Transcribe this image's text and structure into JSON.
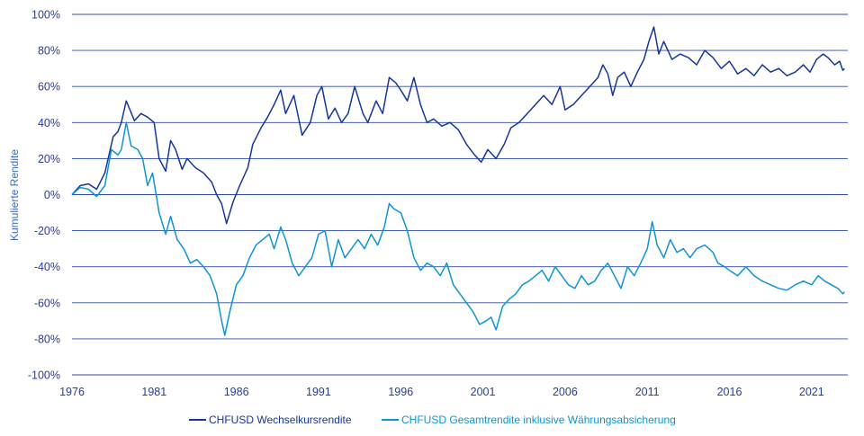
{
  "chart_data": {
    "type": "line",
    "title": "",
    "xlabel": "",
    "ylabel": "Kumulierte Rendite",
    "xlim": [
      1976,
      2023.2
    ],
    "ylim": [
      -100,
      100
    ],
    "x_ticks": [
      "1976",
      "1981",
      "1986",
      "1991",
      "1996",
      "2001",
      "2006",
      "2011",
      "2016",
      "2021"
    ],
    "y_ticks": [
      "100%",
      "80%",
      "60%",
      "40%",
      "20%",
      "0%",
      "-20%",
      "-40%",
      "-60%",
      "-80%",
      "-100%"
    ],
    "grid": "horizontal",
    "legend_position": "bottom",
    "series": [
      {
        "name": "CHFUSD Wechselkursrendite",
        "color": "#15369a",
        "x": [
          1976.0,
          1976.5,
          1977.0,
          1977.5,
          1978.0,
          1978.5,
          1978.8,
          1979.0,
          1979.3,
          1979.8,
          1980.2,
          1980.6,
          1981.0,
          1981.3,
          1981.7,
          1982.0,
          1982.3,
          1982.7,
          1983.0,
          1983.5,
          1984.0,
          1984.5,
          1984.8,
          1985.1,
          1985.4,
          1985.8,
          1986.2,
          1986.7,
          1987.0,
          1987.5,
          1987.9,
          1988.3,
          1988.7,
          1989.0,
          1989.5,
          1990.0,
          1990.5,
          1990.9,
          1991.2,
          1991.6,
          1992.0,
          1992.4,
          1992.8,
          1993.2,
          1993.7,
          1994.0,
          1994.5,
          1994.9,
          1995.3,
          1995.7,
          1996.0,
          1996.4,
          1996.8,
          1997.2,
          1997.6,
          1998.0,
          1998.5,
          1999.0,
          1999.5,
          2000.0,
          2000.5,
          2000.9,
          2001.3,
          2001.8,
          2002.3,
          2002.7,
          2003.2,
          2003.7,
          2004.2,
          2004.7,
          2005.2,
          2005.7,
          2006.0,
          2006.5,
          2007.0,
          2007.5,
          2008.0,
          2008.3,
          2008.6,
          2008.9,
          2009.2,
          2009.6,
          2010.0,
          2010.4,
          2010.8,
          2011.1,
          2011.4,
          2011.7,
          2012.0,
          2012.5,
          2013.0,
          2013.5,
          2014.0,
          2014.5,
          2015.0,
          2015.5,
          2016.0,
          2016.5,
          2017.0,
          2017.5,
          2018.0,
          2018.5,
          2019.0,
          2019.5,
          2020.0,
          2020.5,
          2020.9,
          2021.3,
          2021.7,
          2022.0,
          2022.4,
          2022.7,
          2022.9,
          2023.0
        ],
        "y": [
          0,
          5,
          6,
          3,
          12,
          32,
          35,
          40,
          52,
          41,
          45,
          43,
          40,
          20,
          13,
          30,
          25,
          14,
          20,
          15,
          12,
          7,
          0,
          -5,
          -16,
          -4,
          5,
          15,
          28,
          37,
          43,
          50,
          58,
          45,
          55,
          33,
          40,
          55,
          60,
          42,
          48,
          40,
          45,
          60,
          45,
          40,
          52,
          45,
          65,
          62,
          58,
          52,
          65,
          50,
          40,
          42,
          38,
          40,
          36,
          28,
          22,
          18,
          25,
          20,
          28,
          37,
          40,
          45,
          50,
          55,
          50,
          60,
          47,
          50,
          55,
          60,
          65,
          72,
          67,
          55,
          65,
          68,
          60,
          68,
          75,
          85,
          93,
          78,
          85,
          75,
          78,
          76,
          72,
          80,
          76,
          70,
          74,
          67,
          70,
          66,
          72,
          68,
          70,
          66,
          68,
          72,
          68,
          75,
          78,
          76,
          72,
          74,
          69,
          70
        ]
      },
      {
        "name": "CHFUSD Gesamtrendite inklusive Währungsabsicherung",
        "color": "#0f94d2",
        "x": [
          1976.0,
          1976.5,
          1977.0,
          1977.5,
          1978.0,
          1978.4,
          1978.8,
          1979.0,
          1979.3,
          1979.6,
          1980.0,
          1980.3,
          1980.6,
          1980.9,
          1981.3,
          1981.7,
          1982.0,
          1982.4,
          1982.8,
          1983.2,
          1983.6,
          1984.0,
          1984.4,
          1984.8,
          1985.1,
          1985.3,
          1985.6,
          1986.0,
          1986.4,
          1986.8,
          1987.2,
          1987.6,
          1988.0,
          1988.3,
          1988.7,
          1989.0,
          1989.4,
          1989.8,
          1990.2,
          1990.6,
          1991.0,
          1991.4,
          1991.8,
          1992.2,
          1992.6,
          1993.0,
          1993.4,
          1993.8,
          1994.2,
          1994.6,
          1995.0,
          1995.3,
          1995.6,
          1996.0,
          1996.4,
          1996.8,
          1997.2,
          1997.6,
          1998.0,
          1998.4,
          1998.8,
          1999.2,
          1999.6,
          2000.0,
          2000.4,
          2000.8,
          2001.2,
          2001.5,
          2001.8,
          2002.2,
          2002.6,
          2003.0,
          2003.4,
          2003.8,
          2004.2,
          2004.6,
          2005.0,
          2005.4,
          2005.8,
          2006.2,
          2006.6,
          2007.0,
          2007.4,
          2007.8,
          2008.2,
          2008.6,
          2009.0,
          2009.4,
          2009.8,
          2010.2,
          2010.6,
          2011.0,
          2011.3,
          2011.6,
          2012.0,
          2012.4,
          2012.8,
          2013.2,
          2013.6,
          2014.0,
          2014.5,
          2015.0,
          2015.3,
          2015.7,
          2016.0,
          2016.5,
          2017.0,
          2017.5,
          2018.0,
          2018.5,
          2019.0,
          2019.5,
          2020.0,
          2020.5,
          2021.0,
          2021.4,
          2021.8,
          2022.2,
          2022.6,
          2022.9,
          2023.0
        ],
        "y": [
          0,
          4,
          3,
          -1,
          5,
          25,
          22,
          25,
          40,
          27,
          25,
          20,
          5,
          12,
          -10,
          -22,
          -12,
          -25,
          -30,
          -38,
          -36,
          -40,
          -45,
          -55,
          -70,
          -78,
          -65,
          -50,
          -45,
          -35,
          -28,
          -25,
          -22,
          -30,
          -18,
          -25,
          -38,
          -45,
          -40,
          -35,
          -22,
          -20,
          -40,
          -25,
          -35,
          -30,
          -25,
          -30,
          -22,
          -28,
          -18,
          -5,
          -8,
          -10,
          -20,
          -35,
          -42,
          -38,
          -40,
          -45,
          -38,
          -50,
          -55,
          -60,
          -65,
          -72,
          -70,
          -68,
          -75,
          -62,
          -58,
          -55,
          -50,
          -48,
          -45,
          -42,
          -48,
          -40,
          -45,
          -50,
          -52,
          -45,
          -50,
          -48,
          -42,
          -38,
          -45,
          -52,
          -40,
          -45,
          -38,
          -30,
          -15,
          -28,
          -35,
          -25,
          -32,
          -30,
          -35,
          -30,
          -28,
          -32,
          -38,
          -40,
          -42,
          -45,
          -40,
          -45,
          -48,
          -50,
          -52,
          -53,
          -50,
          -48,
          -50,
          -45,
          -48,
          -50,
          -52,
          -55,
          -54
        ]
      }
    ]
  }
}
